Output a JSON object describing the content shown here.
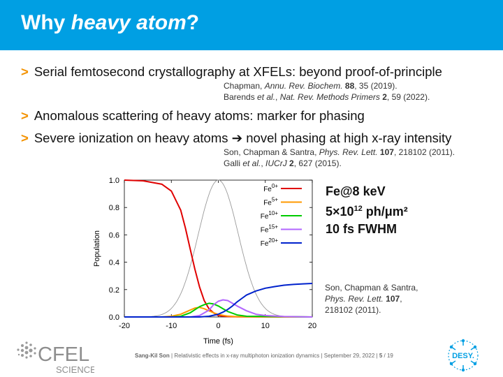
{
  "slide": {
    "title_plain": "Why ",
    "title_italic": "heavy atom",
    "title_end": "?"
  },
  "bullets": [
    {
      "marker": ">",
      "text": "Serial femtosecond crystallography at XFELs: beyond proof-of-principle"
    },
    {
      "marker": ">",
      "text": "Anomalous scattering of heavy atoms: marker for phasing"
    },
    {
      "marker": ">",
      "text": "Severe ionization on heavy atoms ➔ novel phasing at high x-ray intensity"
    }
  ],
  "references": {
    "r1": {
      "authors": "Chapman, ",
      "journal": "Annu. Rev. Biochem.",
      "volume": "88",
      "rest": ", 35 (2019)."
    },
    "r2": {
      "authors": "Barends ",
      "etal": "et al.",
      "journal": "Nat. Rev. Methods Primers",
      "volume": "2",
      "rest": ", 59 (2022)."
    },
    "r3": {
      "authors": "Son, Chapman & Santra, ",
      "journal": "Phys. Rev. Lett.",
      "volume": "107",
      "rest": ", 218102 (2011)."
    },
    "r4": {
      "authors": "Galli ",
      "etal": "et al.",
      "journal": "IUCrJ",
      "volume": "2",
      "rest": ", 627 (2015)."
    }
  },
  "params": {
    "line1": "Fe@8 keV",
    "line2_base": "5×10",
    "line2_exp": "12",
    "line2_unit": " ph/μm²",
    "line3": "10 fs FWHM"
  },
  "cite": {
    "authors": "Son, Chapman & Santra,",
    "journal": "Phys. Rev. Lett.",
    "volume": "107",
    "rest": "218102 (2011)."
  },
  "footer": {
    "author": "Sang-Kil Son",
    "talk": "| Relativistic effects in x-ray multiphoton ionization dynamics | September 29, 2022 |",
    "page": "5",
    "total": "/ 19"
  },
  "logos": {
    "cfel_text": "CFEL",
    "cfel_sub": "SCIENCE",
    "desy_text": "DESY."
  },
  "chart_data": {
    "type": "line",
    "xlabel": "Time (fs)",
    "ylabel": "Population",
    "xlim": [
      -20,
      20
    ],
    "ylim": [
      0,
      1
    ],
    "xticks": [
      -20,
      -10,
      0,
      10,
      20
    ],
    "yticks": [
      0.0,
      0.2,
      0.4,
      0.6,
      0.8,
      1.0
    ],
    "ytick_labels": [
      "0.0",
      "0.2",
      "0.4",
      "0.6",
      "0.8",
      "1.0"
    ],
    "legend_position": "top-right",
    "series": [
      {
        "name": "Fe",
        "charge": "0+",
        "color": "#e00000",
        "x": [
          -20,
          -16,
          -12,
          -10,
          -8,
          -7,
          -6,
          -5,
          -4,
          -3,
          -2,
          -1,
          0,
          2,
          4,
          20
        ],
        "y": [
          1.0,
          0.995,
          0.97,
          0.92,
          0.78,
          0.65,
          0.5,
          0.35,
          0.22,
          0.12,
          0.06,
          0.03,
          0.01,
          0.003,
          0.001,
          0.0
        ]
      },
      {
        "name": "Fe",
        "charge": "5+",
        "color": "#ff9900",
        "x": [
          -20,
          -12,
          -10,
          -8,
          -6,
          -5,
          -4,
          -3,
          -2,
          -1,
          0,
          2,
          4,
          20
        ],
        "y": [
          0,
          0.0,
          0.005,
          0.02,
          0.05,
          0.065,
          0.07,
          0.06,
          0.045,
          0.03,
          0.018,
          0.006,
          0.002,
          0.0
        ]
      },
      {
        "name": "Fe",
        "charge": "10+",
        "color": "#00cc00",
        "x": [
          -20,
          -10,
          -8,
          -6,
          -4,
          -3,
          -2,
          -1,
          0,
          1,
          2,
          4,
          6,
          20
        ],
        "y": [
          0,
          0.0,
          0.005,
          0.03,
          0.075,
          0.09,
          0.1,
          0.095,
          0.08,
          0.06,
          0.04,
          0.015,
          0.005,
          0.0
        ]
      },
      {
        "name": "Fe",
        "charge": "15+",
        "color": "#b266ff",
        "x": [
          -20,
          -6,
          -4,
          -2,
          -1,
          0,
          1,
          2,
          3,
          4,
          6,
          8,
          10,
          14,
          20
        ],
        "y": [
          0,
          0.0,
          0.01,
          0.05,
          0.09,
          0.115,
          0.125,
          0.12,
          0.1,
          0.08,
          0.045,
          0.02,
          0.01,
          0.003,
          0.0
        ]
      },
      {
        "name": "Fe",
        "charge": "20+",
        "color": "#0022cc",
        "x": [
          -20,
          -4,
          -2,
          0,
          1,
          2,
          3,
          4,
          5,
          6,
          8,
          10,
          12,
          14,
          16,
          18,
          20
        ],
        "y": [
          0,
          0.0,
          0.005,
          0.02,
          0.035,
          0.055,
          0.08,
          0.11,
          0.135,
          0.16,
          0.19,
          0.21,
          0.222,
          0.232,
          0.238,
          0.242,
          0.245
        ]
      }
    ],
    "pulse": {
      "color": "#999999",
      "center": 0,
      "fwhm": 10,
      "peak": 1.0
    }
  }
}
